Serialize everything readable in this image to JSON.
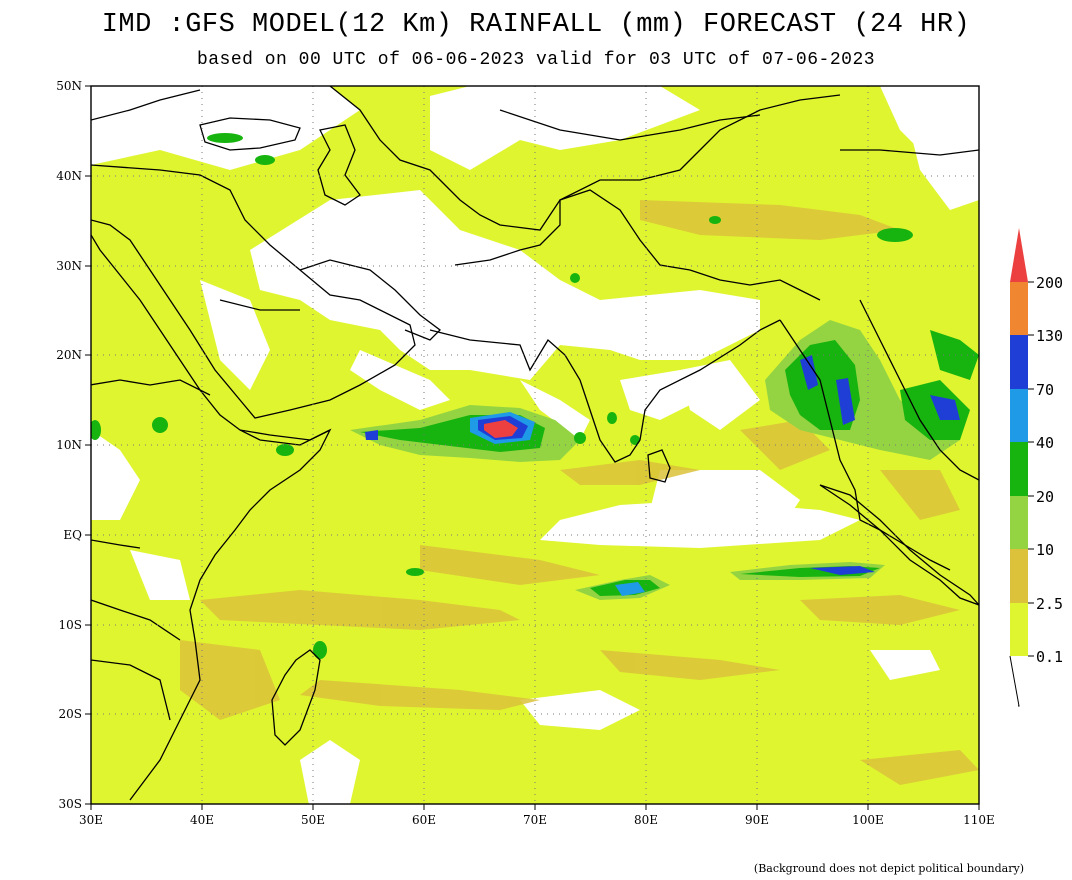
{
  "title": "IMD :GFS MODEL(12 Km) RAINFALL (mm) FORECAST (24 HR)",
  "subtitle": "based on 00 UTC of 06-06-2023 valid for 03 UTC of 07-06-2023",
  "footnote": "(Background does not depict political boundary)",
  "map": {
    "lon_range": [
      30,
      110
    ],
    "lat_range": [
      -30,
      50
    ],
    "x_ticks": [
      "30E",
      "40E",
      "50E",
      "60E",
      "70E",
      "80E",
      "90E",
      "100E",
      "110E"
    ],
    "y_ticks": [
      "50N",
      "40N",
      "30N",
      "20N",
      "10N",
      "EQ",
      "10S",
      "20S",
      "30S"
    ],
    "gridlines": true
  },
  "legend": {
    "levels": [
      "0.1",
      "2.5",
      "10",
      "20",
      "40",
      "70",
      "130",
      "200"
    ],
    "colors": [
      "#dff530",
      "#dcc23a",
      "#94d442",
      "#17b40f",
      "#1e9ae6",
      "#1f3ed6",
      "#f08630",
      "#ec4040"
    ]
  }
}
